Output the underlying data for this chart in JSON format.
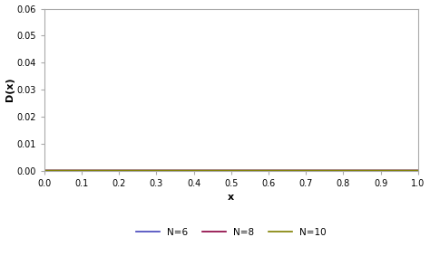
{
  "xlabel": "x",
  "ylabel": "D(x)",
  "xlim": [
    0,
    1.0
  ],
  "ylim": [
    0,
    0.06
  ],
  "xticks": [
    0,
    0.1,
    0.2,
    0.3,
    0.4,
    0.5,
    0.6,
    0.7,
    0.8,
    0.9,
    1
  ],
  "yticks": [
    0,
    0.01,
    0.02,
    0.03,
    0.04,
    0.05,
    0.06
  ],
  "series": [
    {
      "label": "N=6",
      "N": 6,
      "color": "#4444bb"
    },
    {
      "label": "N=8",
      "N": 8,
      "color": "#8b0040"
    },
    {
      "label": "N=10",
      "N": 10,
      "color": "#808000"
    }
  ],
  "background_color": "#ffffff",
  "line_width": 1.2,
  "n_points": 2000
}
